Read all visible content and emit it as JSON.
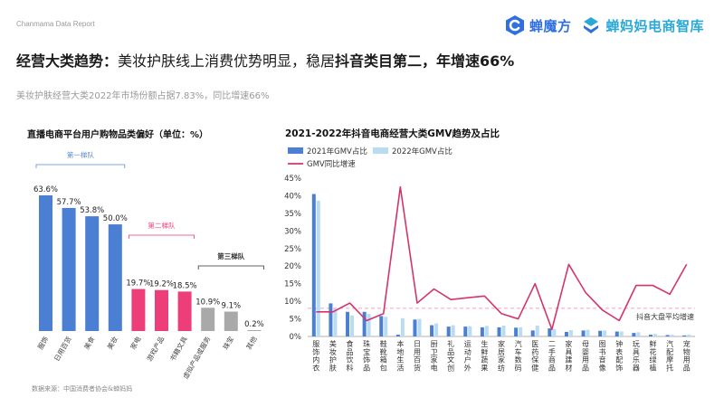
{
  "header": {
    "source_brand": "Chanmama Data Report",
    "logo1": "蝉魔方",
    "logo2": "蝉妈妈电商智库",
    "headline_prefix": "经营大类趋势：",
    "headline_body": "美妆护肤线上消费优势明显，稳居",
    "headline_emphasis": "抖音类目第二，年增速66%",
    "subline": "美妆护肤经营大类2022年市场份额占据7.83%，同比增速66%"
  },
  "footer": {
    "source": "数据来源：中国消费者协会&蝉妈妈"
  },
  "colors": {
    "blue": "#4a7fd3",
    "pink": "#ee3e7a",
    "gray": "#a9a9a9",
    "light_blue": "#b9dcf2",
    "line": "#d4346c",
    "dashed": "#f2a2bd",
    "tier1": "#5a8ad8",
    "tier2": "#ee3e7a"
  },
  "chart_data": [
    {
      "type": "bar",
      "title": "直播电商平台用户购物品类偏好（单位：%）",
      "categories": [
        "服饰",
        "日用百货",
        "美食",
        "美妆",
        "家电",
        "游戏产品",
        "书籍文具",
        "虚拟产品或服务",
        "珠宝",
        "其他"
      ],
      "values": [
        63.6,
        57.7,
        53.8,
        50.0,
        19.7,
        19.2,
        18.5,
        10.9,
        9.1,
        0.2
      ],
      "value_labels": [
        "63.6%",
        "57.7%",
        "53.8%",
        "50.0%",
        "19.7%",
        "19.2%",
        "18.5%",
        "10.9%",
        "9.1%",
        "0.2%"
      ],
      "tiers": [
        {
          "name": "第一梯队",
          "start": 0,
          "end": 3,
          "color": "blue"
        },
        {
          "name": "第二梯队",
          "start": 4,
          "end": 6,
          "color": "pink"
        },
        {
          "name": "第三梯队",
          "start": 7,
          "end": 9,
          "color": "gray"
        }
      ],
      "ylim": [
        0,
        70
      ]
    },
    {
      "type": "bar",
      "title": "2021-2022年抖音电商经营大类GMV趋势及占比",
      "categories": [
        "服饰内衣",
        "美妆护肤",
        "食品饮料",
        "珠宝饰品",
        "鞋靴箱包",
        "本地生活",
        "日用百货",
        "厨卫家电",
        "礼品文创",
        "运动户外",
        "生鲜蔬果",
        "家居家纺",
        "汽车数码",
        "医药保健",
        "二手商品",
        "家具建材",
        "母婴用品",
        "图书音像",
        "钟表配饰",
        "玩具乐器",
        "鲜花绿植",
        "汽配摩托",
        "宠物用品"
      ],
      "series": [
        {
          "name": "2021年GMV占比",
          "values": [
            40.5,
            9.4,
            7.0,
            7.0,
            5.8,
            0.5,
            4.8,
            3.2,
            2.8,
            2.8,
            2.6,
            2.6,
            2.5,
            1.7,
            2.3,
            1.3,
            1.7,
            1.6,
            1.4,
            1.0,
            0.5,
            0.4,
            0.3
          ]
        },
        {
          "name": "2022年GMV占比",
          "values": [
            38.6,
            7.8,
            6.0,
            6.4,
            5.6,
            5.2,
            5.0,
            3.7,
            3.2,
            2.9,
            3.0,
            3.1,
            2.6,
            3.1,
            2.1,
            1.8,
            1.9,
            1.7,
            1.4,
            1.2,
            0.7,
            0.5,
            0.5
          ]
        },
        {
          "name": "GMV同比增速",
          "values": [
            7,
            7,
            9.5,
            4.5,
            6.5,
            42.5,
            9.5,
            13.5,
            10.5,
            11,
            11.5,
            6.5,
            5,
            15,
            2,
            20.5,
            12.5,
            7.5,
            4.5,
            14.5,
            14.5,
            12,
            20.5
          ]
        }
      ],
      "reference_line": {
        "label": "抖音大盘平均增速",
        "value": 8
      },
      "yticks": [
        "0%",
        "5%",
        "10%",
        "15%",
        "20%",
        "25%",
        "30%",
        "35%",
        "40%",
        "45%"
      ],
      "ylim": [
        0,
        45
      ]
    }
  ]
}
